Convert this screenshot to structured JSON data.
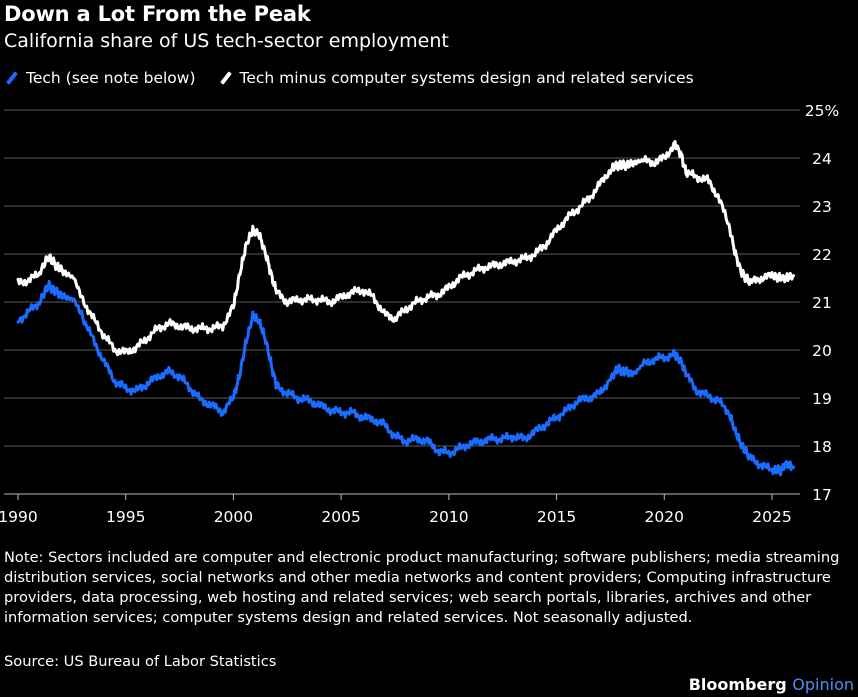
{
  "header": {
    "title": "Down a Lot From the Peak",
    "subtitle": "California share of US tech-sector employment"
  },
  "legend": [
    {
      "label": "Tech (see note below)",
      "color": "#1a6bff"
    },
    {
      "label": "Tech minus computer systems design and related services",
      "color": "#ffffff"
    }
  ],
  "footer": {
    "note": "Note: Sectors included are computer and electronic product manufacturing; software publishers; media streaming distribution services, social networks and other media networks and content providers; Computing infrastructure providers, data processing, web hosting and related services; web search portals, libraries, archives and other information services; computer systems design and related services. Not seasonally adjusted.",
    "source": "Source: US Bureau of Labor Statistics",
    "brand": "Bloomberg",
    "brand_accent": "Opinion"
  },
  "chart_data": {
    "type": "line",
    "title": "Down a Lot From the Peak",
    "subtitle": "California share of US tech-sector employment",
    "xlim": [
      1990,
      2026.3
    ],
    "ylim": [
      17,
      25
    ],
    "x_ticks": [
      1990,
      1995,
      2000,
      2005,
      2010,
      2015,
      2020,
      2025
    ],
    "y_ticks": [
      17,
      18,
      19,
      20,
      21,
      22,
      23,
      24,
      25
    ],
    "y_tick_labels": [
      "17",
      "18",
      "19",
      "20",
      "21",
      "22",
      "23",
      "24",
      "25%"
    ],
    "grid": "horizontal",
    "legend_position": "top-left",
    "series": [
      {
        "name": "Tech (see note below)",
        "color": "#1a6bff",
        "points": [
          [
            1990.0,
            20.6
          ],
          [
            1990.5,
            20.8
          ],
          [
            1991.0,
            21.0
          ],
          [
            1991.4,
            21.35
          ],
          [
            1991.8,
            21.2
          ],
          [
            1992.2,
            21.1
          ],
          [
            1992.6,
            21.05
          ],
          [
            1993.0,
            20.7
          ],
          [
            1993.5,
            20.2
          ],
          [
            1994.0,
            19.75
          ],
          [
            1994.5,
            19.35
          ],
          [
            1995.0,
            19.2
          ],
          [
            1995.5,
            19.15
          ],
          [
            1996.0,
            19.3
          ],
          [
            1996.5,
            19.45
          ],
          [
            1997.0,
            19.55
          ],
          [
            1997.5,
            19.45
          ],
          [
            1998.0,
            19.2
          ],
          [
            1998.5,
            18.95
          ],
          [
            1999.0,
            18.85
          ],
          [
            1999.5,
            18.7
          ],
          [
            2000.0,
            19.0
          ],
          [
            2000.3,
            19.5
          ],
          [
            2000.6,
            20.2
          ],
          [
            2000.9,
            20.7
          ],
          [
            2001.2,
            20.6
          ],
          [
            2001.5,
            20.2
          ],
          [
            2001.8,
            19.6
          ],
          [
            2002.0,
            19.25
          ],
          [
            2002.5,
            19.1
          ],
          [
            2003.0,
            19.0
          ],
          [
            2003.5,
            18.95
          ],
          [
            2004.0,
            18.85
          ],
          [
            2004.5,
            18.75
          ],
          [
            2005.0,
            18.7
          ],
          [
            2005.5,
            18.7
          ],
          [
            2006.0,
            18.6
          ],
          [
            2006.5,
            18.55
          ],
          [
            2007.0,
            18.45
          ],
          [
            2007.5,
            18.2
          ],
          [
            2008.0,
            18.1
          ],
          [
            2008.5,
            18.15
          ],
          [
            2009.0,
            18.1
          ],
          [
            2009.5,
            17.9
          ],
          [
            2010.0,
            17.85
          ],
          [
            2010.5,
            17.95
          ],
          [
            2011.0,
            18.05
          ],
          [
            2011.5,
            18.1
          ],
          [
            2012.0,
            18.15
          ],
          [
            2012.5,
            18.15
          ],
          [
            2013.0,
            18.2
          ],
          [
            2013.5,
            18.15
          ],
          [
            2014.0,
            18.3
          ],
          [
            2014.5,
            18.45
          ],
          [
            2015.0,
            18.6
          ],
          [
            2015.5,
            18.75
          ],
          [
            2016.0,
            18.95
          ],
          [
            2016.5,
            19.0
          ],
          [
            2017.0,
            19.1
          ],
          [
            2017.5,
            19.4
          ],
          [
            2017.8,
            19.6
          ],
          [
            2018.2,
            19.55
          ],
          [
            2018.6,
            19.5
          ],
          [
            2019.0,
            19.7
          ],
          [
            2019.5,
            19.8
          ],
          [
            2020.0,
            19.85
          ],
          [
            2020.5,
            19.9
          ],
          [
            2020.8,
            19.75
          ],
          [
            2021.0,
            19.5
          ],
          [
            2021.5,
            19.15
          ],
          [
            2022.0,
            19.05
          ],
          [
            2022.5,
            18.95
          ],
          [
            2023.0,
            18.7
          ],
          [
            2023.3,
            18.3
          ],
          [
            2023.6,
            18.0
          ],
          [
            2024.0,
            17.75
          ],
          [
            2024.5,
            17.6
          ],
          [
            2025.0,
            17.5
          ],
          [
            2025.4,
            17.5
          ],
          [
            2025.7,
            17.65
          ],
          [
            2026.0,
            17.55
          ]
        ]
      },
      {
        "name": "Tech minus computer systems design and related services",
        "color": "#ffffff",
        "points": [
          [
            1990.0,
            21.4
          ],
          [
            1990.5,
            21.45
          ],
          [
            1991.0,
            21.6
          ],
          [
            1991.4,
            21.95
          ],
          [
            1991.8,
            21.75
          ],
          [
            1992.2,
            21.6
          ],
          [
            1992.6,
            21.5
          ],
          [
            1993.0,
            21.05
          ],
          [
            1993.5,
            20.65
          ],
          [
            1994.0,
            20.3
          ],
          [
            1994.5,
            20.0
          ],
          [
            1995.0,
            19.95
          ],
          [
            1995.5,
            20.05
          ],
          [
            1996.0,
            20.25
          ],
          [
            1996.5,
            20.45
          ],
          [
            1997.0,
            20.55
          ],
          [
            1997.5,
            20.5
          ],
          [
            1998.0,
            20.45
          ],
          [
            1998.5,
            20.45
          ],
          [
            1999.0,
            20.45
          ],
          [
            1999.5,
            20.5
          ],
          [
            2000.0,
            20.9
          ],
          [
            2000.3,
            21.6
          ],
          [
            2000.6,
            22.2
          ],
          [
            2000.9,
            22.5
          ],
          [
            2001.2,
            22.4
          ],
          [
            2001.5,
            22.0
          ],
          [
            2001.8,
            21.5
          ],
          [
            2002.0,
            21.2
          ],
          [
            2002.5,
            21.0
          ],
          [
            2003.0,
            21.05
          ],
          [
            2003.5,
            21.05
          ],
          [
            2004.0,
            21.05
          ],
          [
            2004.5,
            21.0
          ],
          [
            2005.0,
            21.1
          ],
          [
            2005.5,
            21.2
          ],
          [
            2006.0,
            21.25
          ],
          [
            2006.5,
            21.1
          ],
          [
            2007.0,
            20.75
          ],
          [
            2007.5,
            20.65
          ],
          [
            2008.0,
            20.85
          ],
          [
            2008.5,
            21.0
          ],
          [
            2009.0,
            21.1
          ],
          [
            2009.5,
            21.15
          ],
          [
            2010.0,
            21.3
          ],
          [
            2010.5,
            21.5
          ],
          [
            2011.0,
            21.6
          ],
          [
            2011.5,
            21.7
          ],
          [
            2012.0,
            21.75
          ],
          [
            2012.5,
            21.8
          ],
          [
            2013.0,
            21.85
          ],
          [
            2013.5,
            21.9
          ],
          [
            2014.0,
            22.0
          ],
          [
            2014.5,
            22.2
          ],
          [
            2015.0,
            22.5
          ],
          [
            2015.5,
            22.75
          ],
          [
            2016.0,
            22.95
          ],
          [
            2016.5,
            23.15
          ],
          [
            2017.0,
            23.45
          ],
          [
            2017.5,
            23.75
          ],
          [
            2017.8,
            23.85
          ],
          [
            2018.2,
            23.85
          ],
          [
            2018.6,
            23.9
          ],
          [
            2019.0,
            23.95
          ],
          [
            2019.5,
            23.9
          ],
          [
            2020.0,
            24.0
          ],
          [
            2020.5,
            24.3
          ],
          [
            2020.8,
            24.05
          ],
          [
            2021.0,
            23.7
          ],
          [
            2021.5,
            23.6
          ],
          [
            2022.0,
            23.55
          ],
          [
            2022.5,
            23.2
          ],
          [
            2023.0,
            22.6
          ],
          [
            2023.3,
            22.0
          ],
          [
            2023.6,
            21.6
          ],
          [
            2024.0,
            21.4
          ],
          [
            2024.5,
            21.5
          ],
          [
            2025.0,
            21.55
          ],
          [
            2025.4,
            21.5
          ],
          [
            2025.7,
            21.5
          ],
          [
            2026.0,
            21.55
          ]
        ]
      }
    ]
  }
}
